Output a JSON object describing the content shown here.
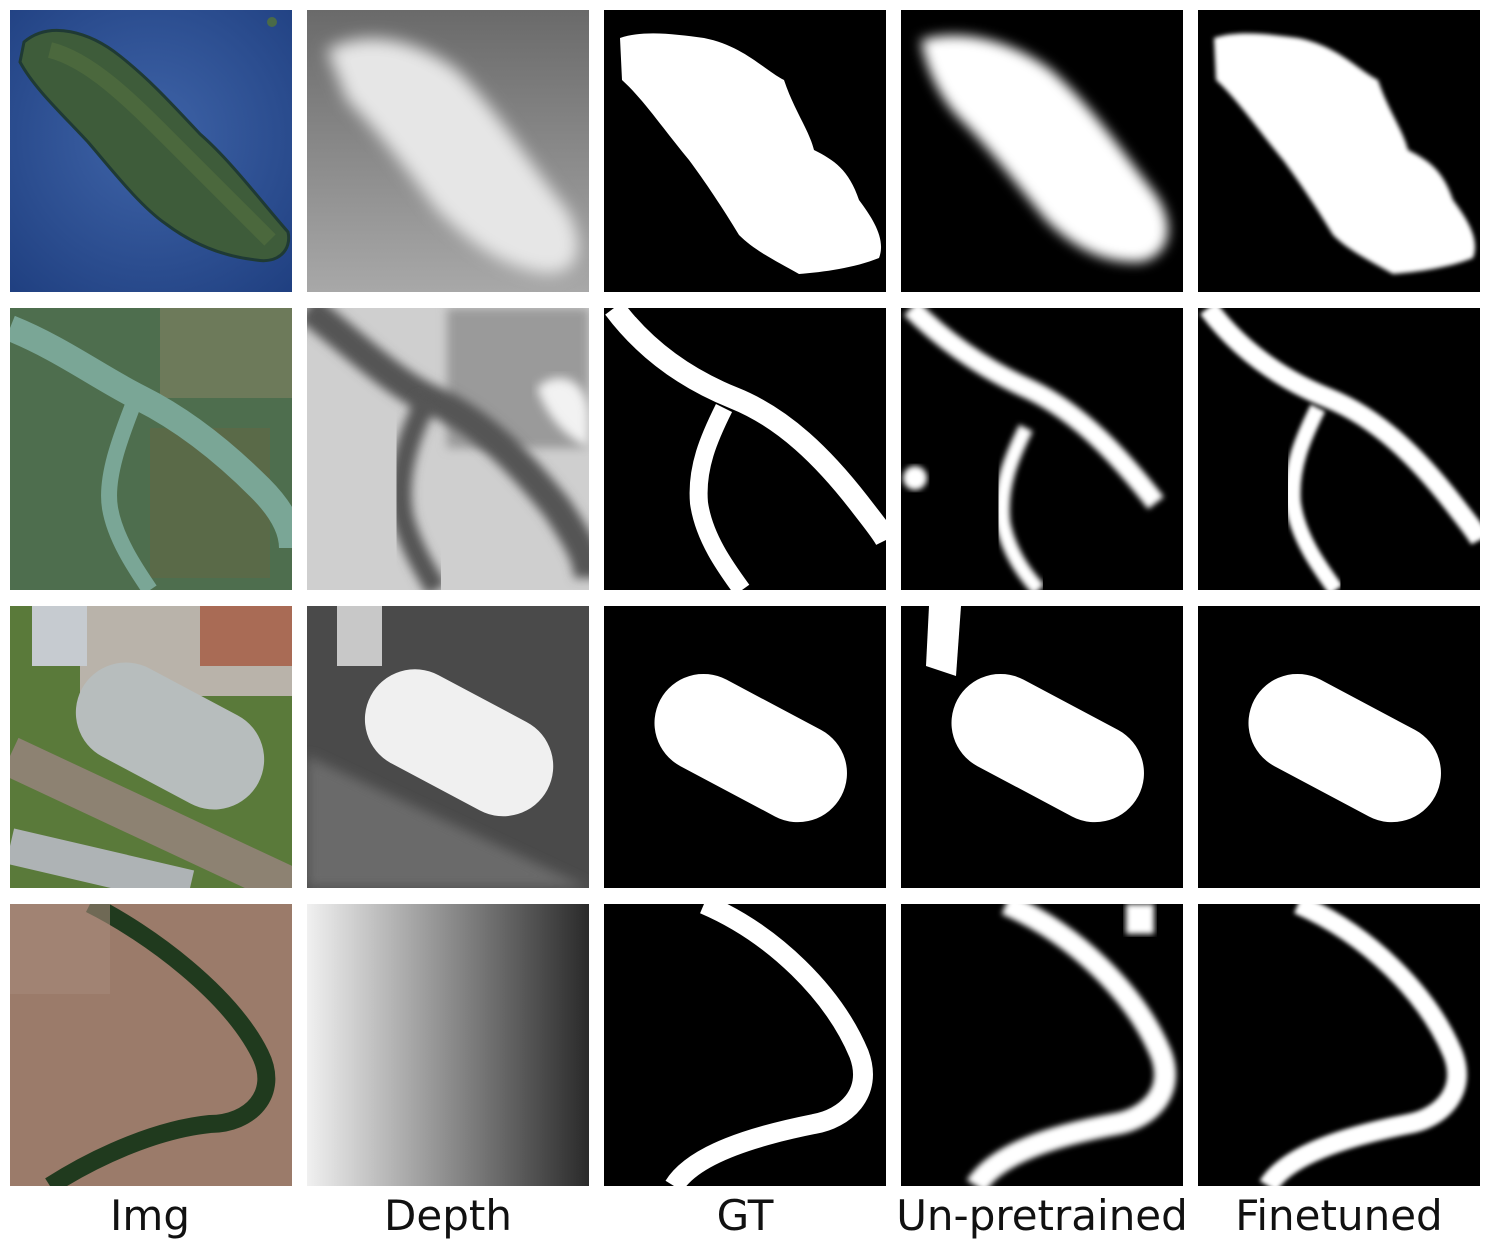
{
  "columns": [
    "Img",
    "Depth",
    "GT",
    "Un-pretrained",
    "Finetuned"
  ],
  "rows": [
    {
      "scene": "island"
    },
    {
      "scene": "river-fork"
    },
    {
      "scene": "stadium"
    },
    {
      "scene": "river-bend"
    }
  ]
}
